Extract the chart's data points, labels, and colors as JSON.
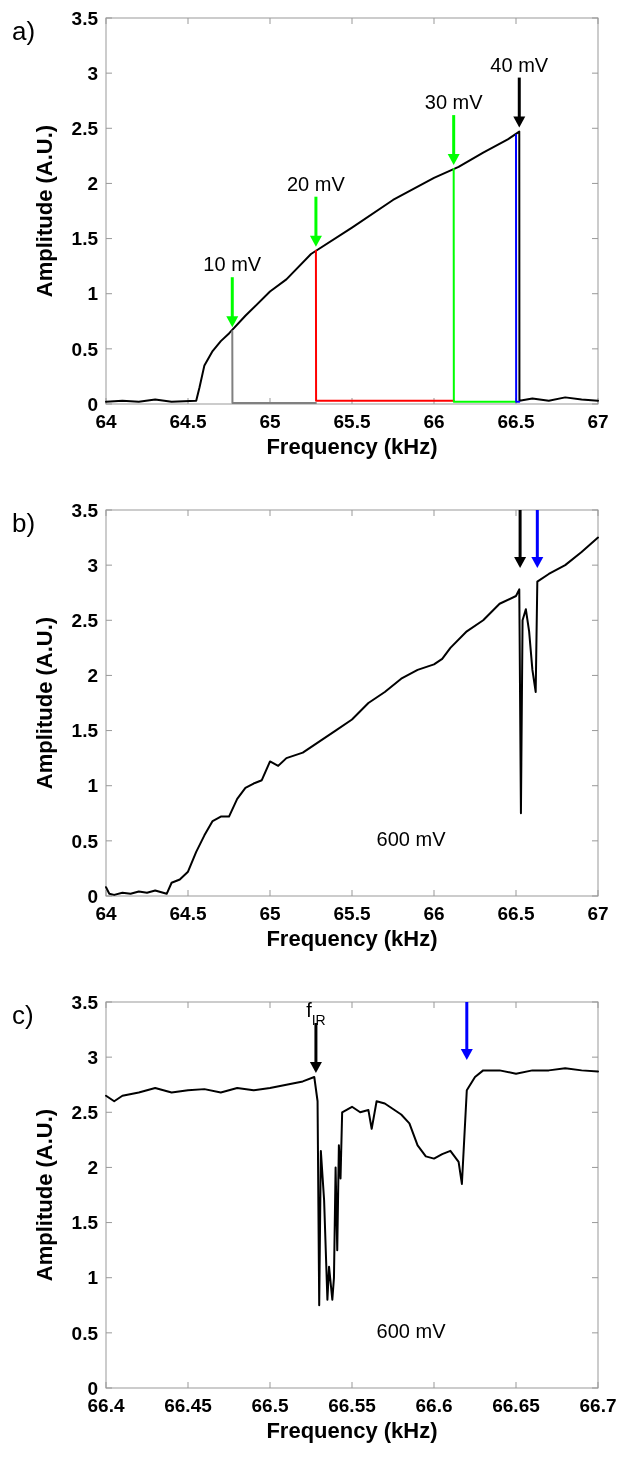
{
  "chart_data": [
    {
      "type": "line",
      "title": "a)",
      "xlabel": "Frequency (kHz)",
      "ylabel": "Amplitude (A.U.)",
      "xlim": [
        64,
        67
      ],
      "ylim": [
        0,
        3.5
      ],
      "xticks": [
        64,
        64.5,
        65,
        65.5,
        66,
        66.5,
        67
      ],
      "yticks": [
        0,
        0.5,
        1,
        1.5,
        2,
        2.5,
        3,
        3.5
      ],
      "annotations": [
        {
          "text": "10 mV",
          "x": 64.77,
          "y": 0.66
        },
        {
          "text": "20 mV",
          "x": 65.28,
          "y": 1.39
        },
        {
          "text": "30 mV",
          "x": 66.12,
          "y": 2.13
        },
        {
          "text": "40 mV",
          "x": 66.52,
          "y": 2.47
        }
      ],
      "series": [
        {
          "color": "#000000",
          "x": [
            64,
            64.1,
            64.2,
            64.3,
            64.4,
            64.55,
            64.57,
            64.6,
            64.65,
            64.7,
            64.75,
            64.85,
            65,
            65.1,
            65.25,
            65.5,
            65.75,
            66,
            66.15,
            66.3,
            66.45,
            66.52,
            66.521,
            66.6,
            66.7,
            66.8,
            66.9,
            67
          ],
          "values": [
            0.02,
            0.03,
            0.02,
            0.04,
            0.02,
            0.03,
            0.15,
            0.35,
            0.48,
            0.57,
            0.64,
            0.8,
            1.02,
            1.13,
            1.36,
            1.6,
            1.85,
            2.05,
            2.15,
            2.28,
            2.4,
            2.47,
            0.03,
            0.05,
            0.03,
            0.06,
            0.04,
            0.03
          ]
        },
        {
          "color": "#808080",
          "x": [
            64.77,
            64.771,
            65,
            65.28
          ],
          "values": [
            0.66,
            0.01,
            0.01,
            0.01
          ]
        },
        {
          "color": "#ff0000",
          "x": [
            65.28,
            65.281,
            65.7,
            66.12
          ],
          "values": [
            1.39,
            0.03,
            0.03,
            0.03
          ]
        },
        {
          "color": "#00ff00",
          "x": [
            66.12,
            66.121,
            66.3,
            66.5
          ],
          "values": [
            2.13,
            0.02,
            0.02,
            0.02
          ]
        },
        {
          "color": "#0000ff",
          "x": [
            66.5,
            66.501,
            66.52
          ],
          "values": [
            2.44,
            0.02,
            0.02
          ]
        }
      ]
    },
    {
      "type": "line",
      "title": "b)",
      "xlabel": "Frequency (kHz)",
      "ylabel": "Amplitude (A.U.)",
      "xlim": [
        64,
        67
      ],
      "ylim": [
        0,
        3.5
      ],
      "xticks": [
        64,
        64.5,
        65,
        65.5,
        66,
        66.5,
        67
      ],
      "yticks": [
        0,
        0.5,
        1,
        1.5,
        2,
        2.5,
        3,
        3.5
      ],
      "annotations": [
        "600 mV"
      ],
      "ref_lines": [
        {
          "axis": "x",
          "value": 66.525,
          "color": "#000000"
        },
        {
          "axis": "x",
          "value": 66.63,
          "color": "#0000ff"
        }
      ],
      "series": [
        {
          "color": "#000000",
          "x": [
            64,
            64.02,
            64.05,
            64.1,
            64.15,
            64.2,
            64.25,
            64.3,
            64.37,
            64.4,
            64.45,
            64.5,
            64.55,
            64.6,
            64.65,
            64.7,
            64.75,
            64.8,
            64.85,
            64.9,
            64.95,
            65,
            65.05,
            65.1,
            65.2,
            65.3,
            65.4,
            65.5,
            65.6,
            65.7,
            65.8,
            65.9,
            66,
            66.05,
            66.1,
            66.2,
            66.3,
            66.4,
            66.5,
            66.52,
            66.53,
            66.54,
            66.56,
            66.58,
            66.6,
            66.62,
            66.63,
            66.7,
            66.8,
            66.9,
            67
          ],
          "values": [
            0.08,
            0.02,
            0.01,
            0.03,
            0.02,
            0.04,
            0.03,
            0.05,
            0.02,
            0.12,
            0.15,
            0.22,
            0.4,
            0.55,
            0.68,
            0.72,
            0.72,
            0.88,
            0.98,
            1.02,
            1.05,
            1.22,
            1.18,
            1.25,
            1.3,
            1.4,
            1.5,
            1.6,
            1.75,
            1.85,
            1.97,
            2.05,
            2.1,
            2.15,
            2.25,
            2.4,
            2.5,
            2.65,
            2.72,
            2.78,
            0.75,
            2.5,
            2.6,
            2.4,
            2.05,
            1.85,
            2.85,
            2.92,
            3.0,
            3.12,
            3.25
          ]
        }
      ]
    },
    {
      "type": "line",
      "title": "c)",
      "xlabel": "Frequency (kHz)",
      "ylabel": "Amplitude (A.U.)",
      "xlim": [
        66.4,
        66.7
      ],
      "ylim": [
        0,
        3.5
      ],
      "xticks": [
        66.4,
        66.45,
        66.5,
        66.55,
        66.6,
        66.65,
        66.7
      ],
      "yticks": [
        0,
        0.5,
        1,
        1.5,
        2,
        2.5,
        3,
        3.5
      ],
      "annotations": [
        {
          "text": "f$_{IR}$",
          "x": 66.528,
          "y": 2.82
        },
        "600 mV"
      ],
      "ref_lines": [
        {
          "axis": "x",
          "value": 66.62,
          "color": "#0000ff"
        }
      ],
      "series": [
        {
          "color": "#000000",
          "x": [
            66.4,
            66.405,
            66.41,
            66.42,
            66.43,
            66.44,
            66.45,
            66.46,
            66.47,
            66.48,
            66.49,
            66.5,
            66.51,
            66.52,
            66.527,
            66.529,
            66.53,
            66.531,
            66.533,
            66.535,
            66.536,
            66.538,
            66.539,
            66.54,
            66.541,
            66.542,
            66.543,
            66.544,
            66.55,
            66.555,
            66.56,
            66.562,
            66.565,
            66.57,
            66.58,
            66.585,
            66.59,
            66.595,
            66.6,
            66.605,
            66.61,
            66.615,
            66.617,
            66.62,
            66.625,
            66.63,
            66.64,
            66.65,
            66.66,
            66.67,
            66.68,
            66.69,
            66.7
          ],
          "values": [
            2.65,
            2.6,
            2.65,
            2.68,
            2.72,
            2.68,
            2.7,
            2.71,
            2.68,
            2.72,
            2.7,
            2.72,
            2.75,
            2.78,
            2.82,
            2.6,
            0.75,
            2.15,
            1.7,
            0.8,
            1.1,
            0.8,
            1.0,
            2.0,
            1.25,
            2.2,
            1.9,
            2.5,
            2.55,
            2.5,
            2.52,
            2.35,
            2.6,
            2.58,
            2.48,
            2.4,
            2.2,
            2.1,
            2.08,
            2.12,
            2.15,
            2.05,
            1.85,
            2.7,
            2.82,
            2.88,
            2.88,
            2.85,
            2.88,
            2.88,
            2.9,
            2.88,
            2.87
          ]
        }
      ]
    }
  ]
}
